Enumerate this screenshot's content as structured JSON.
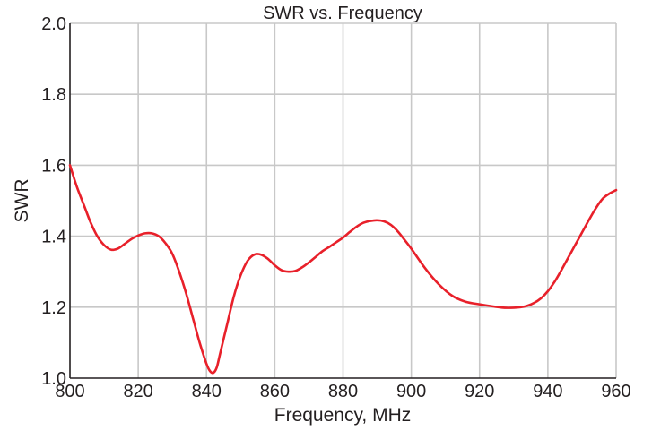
{
  "chart_data": {
    "type": "line",
    "title": "SWR vs. Frequency",
    "xlabel": "Frequency, MHz",
    "ylabel": "SWR",
    "xlim": [
      800,
      960
    ],
    "ylim": [
      1.0,
      2.0
    ],
    "grid": true,
    "xticks": [
      "800",
      "820",
      "840",
      "860",
      "880",
      "900",
      "920",
      "940",
      "960"
    ],
    "yticks": [
      "1.0",
      "1.2",
      "1.4",
      "1.6",
      "1.8",
      "2.0"
    ],
    "colors": {
      "line": "#e8202a",
      "grid": "#c8c8c8",
      "axis": "#231f20"
    },
    "series": [
      {
        "x": [
          800,
          802,
          804,
          806,
          808,
          810,
          812,
          814,
          816,
          818,
          820,
          822,
          824,
          826,
          828,
          830,
          832,
          834,
          836,
          838,
          840,
          841,
          842,
          843,
          844,
          846,
          848,
          850,
          852,
          854,
          856,
          858,
          860,
          862,
          864,
          866,
          868,
          870,
          872,
          874,
          876,
          878,
          880,
          882,
          884,
          886,
          888,
          890,
          892,
          894,
          896,
          898,
          900,
          904,
          908,
          912,
          916,
          920,
          924,
          928,
          932,
          934,
          936,
          938,
          940,
          942,
          944,
          946,
          948,
          950,
          952,
          954,
          956,
          958,
          960
        ],
        "y": [
          1.6,
          1.54,
          1.49,
          1.44,
          1.4,
          1.375,
          1.362,
          1.365,
          1.378,
          1.392,
          1.402,
          1.408,
          1.408,
          1.4,
          1.38,
          1.35,
          1.3,
          1.24,
          1.17,
          1.1,
          1.04,
          1.02,
          1.015,
          1.03,
          1.07,
          1.15,
          1.23,
          1.29,
          1.33,
          1.348,
          1.348,
          1.336,
          1.318,
          1.304,
          1.3,
          1.302,
          1.312,
          1.326,
          1.342,
          1.358,
          1.37,
          1.383,
          1.396,
          1.412,
          1.427,
          1.438,
          1.443,
          1.445,
          1.442,
          1.432,
          1.414,
          1.39,
          1.365,
          1.31,
          1.265,
          1.232,
          1.215,
          1.208,
          1.202,
          1.198,
          1.2,
          1.204,
          1.212,
          1.225,
          1.245,
          1.272,
          1.305,
          1.34,
          1.375,
          1.41,
          1.445,
          1.478,
          1.505,
          1.52,
          1.53
        ]
      }
    ]
  }
}
